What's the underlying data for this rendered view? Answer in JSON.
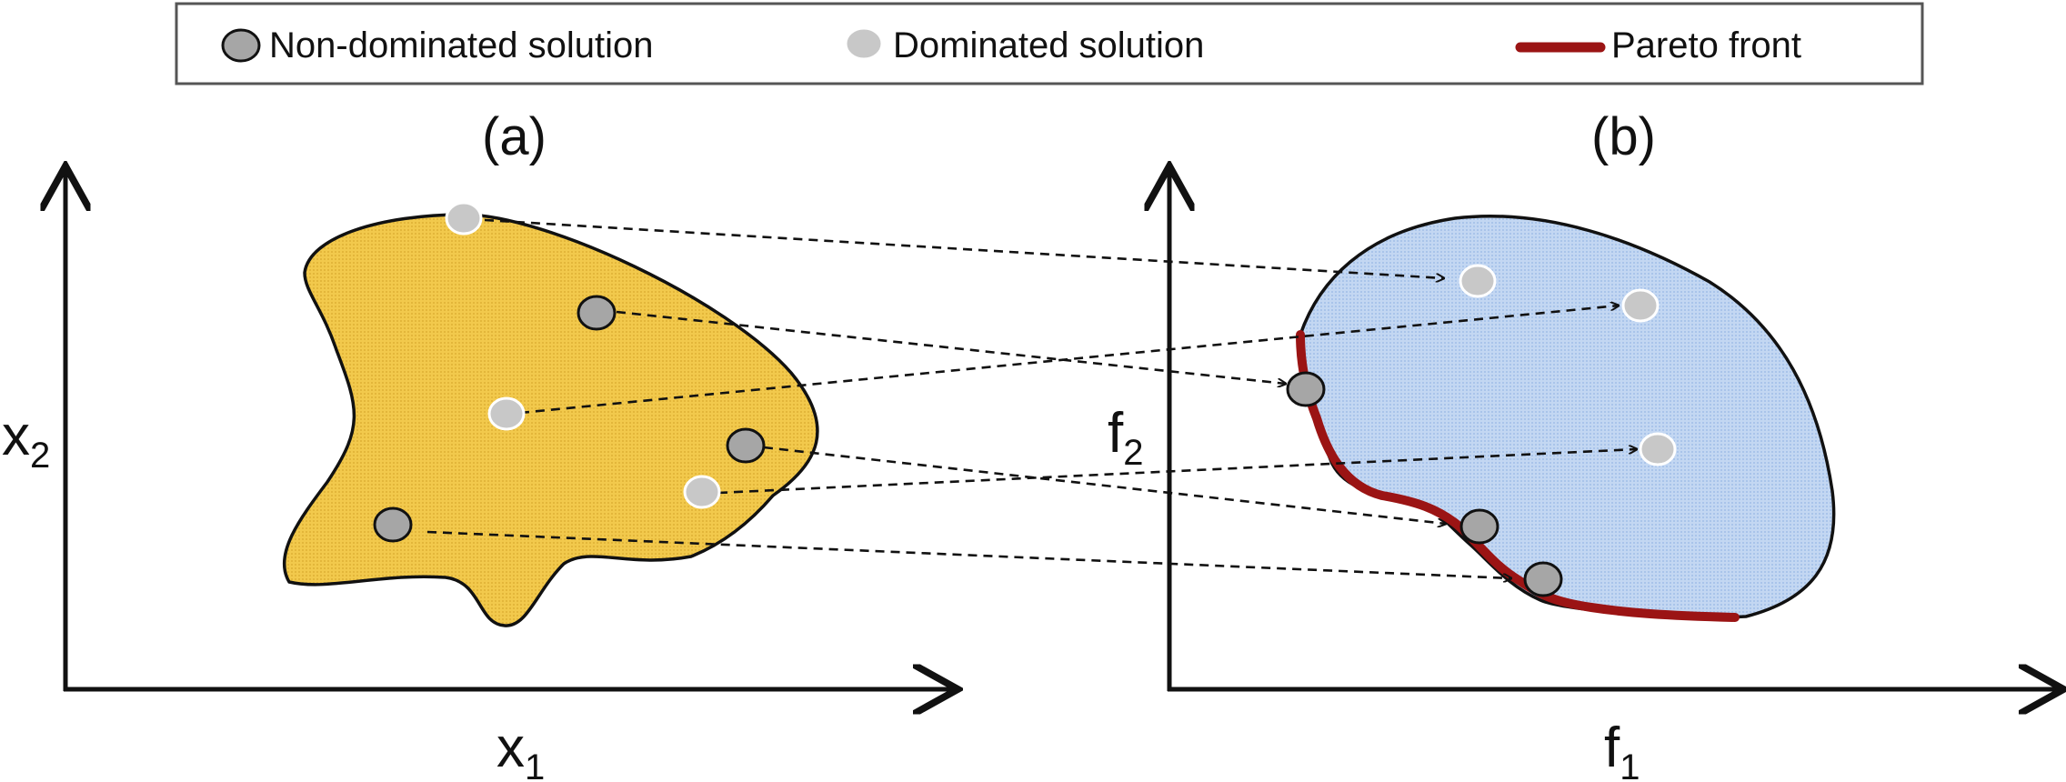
{
  "legend": {
    "non_dominated_label": "Non-dominated solution",
    "dominated_label": "Dominated solution",
    "pareto_label": "Pareto front"
  },
  "panels": {
    "a": {
      "label": "(a)",
      "x_axis": "x",
      "x_sub": "1",
      "y_axis": "x",
      "y_sub": "2"
    },
    "b": {
      "label": "(b)",
      "x_axis": "f",
      "x_sub": "1",
      "y_axis": "f",
      "y_sub": "2"
    }
  },
  "colors": {
    "decision_space_fill": "#f2c94c",
    "objective_space_fill": "#bcd3f0",
    "pareto_front": "#9b1414",
    "non_dominated_point": "#a6a6a6",
    "dominated_point": "#c8c8c8"
  },
  "icons": {
    "non_dominated": "gray-circle-dark-outline",
    "dominated": "gray-circle-white-outline",
    "pareto": "dark-red-line"
  }
}
